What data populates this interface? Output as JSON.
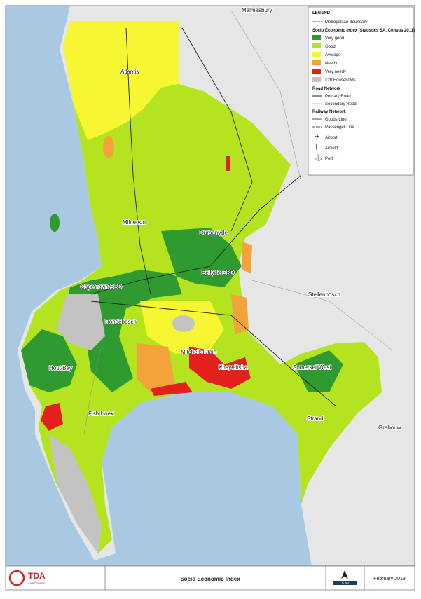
{
  "legend": {
    "title": "LEGEND",
    "boundary": "Metropolitan Boundary",
    "index_title": "Socio Economic Index (Statistics SA, Census 2011)",
    "classes": [
      {
        "label": "Very good",
        "color": "#2f9a2f"
      },
      {
        "label": "Good",
        "color": "#b3e41f"
      },
      {
        "label": "Average",
        "color": "#f6f632"
      },
      {
        "label": "Needy",
        "color": "#f4a23a"
      },
      {
        "label": "Very needy",
        "color": "#e3201c"
      },
      {
        "label": "<20 Households",
        "color": "#c3c3c3"
      }
    ],
    "road_title": "Road Network",
    "roads": [
      "Primary Road",
      "Secondary Road"
    ],
    "rail_title": "Railway Network",
    "rails": [
      "Goods Line",
      "Passenger Line"
    ],
    "facilities": [
      "Airport",
      "Airfield",
      "Port"
    ]
  },
  "places": [
    "Malmesbury",
    "Atlantis",
    "Milnerton",
    "Durbanville",
    "Bellville CBD",
    "Cape Town CBD",
    "Rondebosch",
    "Hout Bay",
    "Mitchells Plain",
    "Khayelitsha",
    "Somerset West",
    "Strand",
    "Fish Hoek",
    "Stellenbosch",
    "Grabouw"
  ],
  "footer": {
    "logo": "TDA",
    "logo_sub": "CAPE TOWN",
    "title": "Socio Economic Index",
    "scale": "5 km",
    "date": "February 2018"
  }
}
